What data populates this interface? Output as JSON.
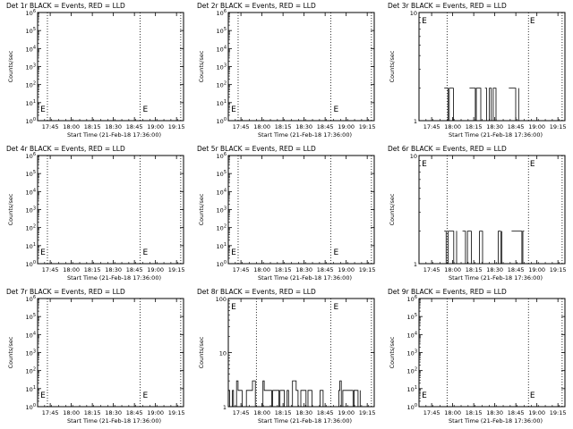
{
  "figure": {
    "background": "#ffffff",
    "ink": "#000000"
  },
  "chart_data": [
    {
      "title": "Det 1r BLACK = Events, RED = LLD",
      "type": "line",
      "ylabel": "Counts/sec",
      "xlabel": "Start Time (21-Feb-18 17:36:00)",
      "yscale": "log",
      "ylim": [
        1,
        1000000
      ],
      "yticks": [
        "10^0",
        "10^1",
        "10^2",
        "10^3",
        "10^4",
        "10^5",
        "10^6"
      ],
      "xticks": [
        "17:45",
        "18:00",
        "18:15",
        "18:30",
        "18:45",
        "19:00",
        "19:15"
      ],
      "xlim": [
        "17:36",
        "19:20"
      ],
      "grid": "dotted vertical lines",
      "vlines": [
        "17:43",
        "18:49",
        "19:18"
      ],
      "markers": [
        {
          "label": "E",
          "x": "17:38"
        },
        {
          "label": "E",
          "x": "18:51"
        }
      ],
      "series": []
    },
    {
      "title": "Det 2r BLACK = Events, RED = LLD",
      "type": "line",
      "ylabel": "Counts/sec",
      "xlabel": "Start Time (21-Feb-18 17:36:00)",
      "yscale": "log",
      "ylim": [
        1,
        1000000
      ],
      "yticks": [
        "10^0",
        "10^1",
        "10^2",
        "10^3",
        "10^4",
        "10^5",
        "10^6"
      ],
      "xticks": [
        "17:45",
        "18:00",
        "18:15",
        "18:30",
        "18:45",
        "19:00",
        "19:15"
      ],
      "xlim": [
        "17:36",
        "19:20"
      ],
      "grid": "dotted vertical lines",
      "vlines": [
        "17:43",
        "18:49",
        "19:18"
      ],
      "markers": [
        {
          "label": "E",
          "x": "17:38"
        },
        {
          "label": "E",
          "x": "18:51"
        }
      ],
      "series": []
    },
    {
      "title": "Det 3r BLACK = Events, RED = LLD",
      "type": "line",
      "ylabel": "Counts/sec",
      "xlabel": "Start Time (21-Feb-18 17:36:00)",
      "yscale": "log",
      "ylim": [
        1,
        10
      ],
      "yticks": [
        "1",
        "10"
      ],
      "xticks": [
        "17:45",
        "18:00",
        "18:15",
        "18:30",
        "18:45",
        "19:00",
        "19:15"
      ],
      "xlim": [
        "17:36",
        "19:20"
      ],
      "grid": "dotted vertical lines",
      "vlines": [
        "17:56",
        "18:54",
        "19:18"
      ],
      "markers": [
        {
          "label": "E",
          "x": "17:38"
        },
        {
          "label": "E",
          "x": "18:55"
        }
      ],
      "series": [
        {
          "color": "#000000",
          "level": 2,
          "base": 1,
          "bursts": [
            [
              "17:54",
              "18:01"
            ],
            [
              "18:12",
              "18:20"
            ],
            [
              "18:23",
              "18:32"
            ],
            [
              "18:40",
              "18:47"
            ]
          ]
        }
      ]
    },
    {
      "title": "Det 4r BLACK = Events, RED = LLD",
      "type": "line",
      "ylabel": "Counts/sec",
      "xlabel": "Start Time (21-Feb-18 17:36:00)",
      "yscale": "log",
      "ylim": [
        1,
        1000000
      ],
      "yticks": [
        "10^0",
        "10^1",
        "10^2",
        "10^3",
        "10^4",
        "10^5",
        "10^6"
      ],
      "xticks": [
        "17:45",
        "18:00",
        "18:15",
        "18:30",
        "18:45",
        "19:00",
        "19:15"
      ],
      "xlim": [
        "17:36",
        "19:20"
      ],
      "grid": "dotted vertical lines",
      "vlines": [
        "17:43",
        "18:49",
        "19:18"
      ],
      "markers": [
        {
          "label": "E",
          "x": "17:38"
        },
        {
          "label": "E",
          "x": "18:51"
        }
      ],
      "series": []
    },
    {
      "title": "Det 5r BLACK = Events, RED = LLD",
      "type": "line",
      "ylabel": "Counts/sec",
      "xlabel": "Start Time (21-Feb-18 17:36:00)",
      "yscale": "log",
      "ylim": [
        1,
        1000000
      ],
      "yticks": [
        "10^0",
        "10^1",
        "10^2",
        "10^3",
        "10^4",
        "10^5",
        "10^6"
      ],
      "xticks": [
        "17:45",
        "18:00",
        "18:15",
        "18:30",
        "18:45",
        "19:00",
        "19:15"
      ],
      "xlim": [
        "17:36",
        "19:20"
      ],
      "grid": "dotted vertical lines",
      "vlines": [
        "17:43",
        "18:49",
        "19:18"
      ],
      "markers": [
        {
          "label": "E",
          "x": "17:38"
        },
        {
          "label": "E",
          "x": "18:51"
        }
      ],
      "series": []
    },
    {
      "title": "Det 6r BLACK = Events, RED = LLD",
      "type": "line",
      "ylabel": "Counts/sec",
      "xlabel": "Start Time (21-Feb-18 17:36:00)",
      "yscale": "log",
      "ylim": [
        1,
        10
      ],
      "yticks": [
        "1",
        "10"
      ],
      "xticks": [
        "17:45",
        "18:00",
        "18:15",
        "18:30",
        "18:45",
        "19:00",
        "19:15"
      ],
      "xlim": [
        "17:36",
        "19:20"
      ],
      "grid": "dotted vertical lines",
      "vlines": [
        "17:56",
        "18:54",
        "19:18"
      ],
      "markers": [
        {
          "label": "E",
          "x": "17:38"
        },
        {
          "label": "E",
          "x": "18:55"
        }
      ],
      "series": [
        {
          "color": "#000000",
          "level": 2,
          "base": 1,
          "bursts": [
            [
              "17:54",
              "18:03"
            ],
            [
              "18:07",
              "18:35"
            ],
            [
              "18:42",
              "18:51"
            ]
          ]
        }
      ]
    },
    {
      "title": "Det 7r BLACK = Events, RED = LLD",
      "type": "line",
      "ylabel": "Counts/sec",
      "xlabel": "Start Time (21-Feb-18 17:36:00)",
      "yscale": "log",
      "ylim": [
        1,
        1000000
      ],
      "yticks": [
        "10^0",
        "10^1",
        "10^2",
        "10^3",
        "10^4",
        "10^5",
        "10^6"
      ],
      "xticks": [
        "17:45",
        "18:00",
        "18:15",
        "18:30",
        "18:45",
        "19:00",
        "19:15"
      ],
      "xlim": [
        "17:36",
        "19:20"
      ],
      "grid": "dotted vertical lines",
      "vlines": [
        "17:43",
        "18:49",
        "19:18"
      ],
      "markers": [
        {
          "label": "E",
          "x": "17:38"
        },
        {
          "label": "E",
          "x": "18:51"
        }
      ],
      "series": []
    },
    {
      "title": "Det 8r BLACK = Events, RED = LLD",
      "type": "line",
      "ylabel": "Counts/sec",
      "xlabel": "Start Time (21-Feb-18 17:36:00)",
      "yscale": "log",
      "ylim": [
        1,
        100
      ],
      "yticks": [
        "1",
        "10",
        "100"
      ],
      "xticks": [
        "17:45",
        "18:00",
        "18:15",
        "18:30",
        "18:45",
        "19:00",
        "19:15"
      ],
      "xlim": [
        "17:36",
        "19:20"
      ],
      "grid": "dotted vertical lines",
      "vlines": [
        "17:56",
        "18:49",
        "19:18"
      ],
      "markers": [
        {
          "label": "E",
          "x": "17:38"
        },
        {
          "label": "E",
          "x": "18:51"
        }
      ],
      "series": [
        {
          "color": "#000000",
          "level": 2,
          "peak": 3,
          "base": 1,
          "bursts": [
            [
              "17:36",
              "19:10"
            ]
          ]
        }
      ]
    },
    {
      "title": "Det 9r BLACK = Events, RED = LLD",
      "type": "line",
      "ylabel": "Counts/sec",
      "xlabel": "Start Time (21-Feb-18 17:36:00)",
      "yscale": "log",
      "ylim": [
        1,
        1000000
      ],
      "yticks": [
        "10^0",
        "10^1",
        "10^2",
        "10^3",
        "10^4",
        "10^5",
        "10^6"
      ],
      "xticks": [
        "17:45",
        "18:00",
        "18:15",
        "18:30",
        "18:45",
        "19:00",
        "19:15"
      ],
      "xlim": [
        "17:36",
        "19:20"
      ],
      "grid": "dotted vertical lines",
      "vlines": [
        "17:56",
        "18:54",
        "19:18"
      ],
      "markers": [
        {
          "label": "E",
          "x": "17:38"
        },
        {
          "label": "E",
          "x": "18:55"
        }
      ],
      "series": []
    }
  ]
}
